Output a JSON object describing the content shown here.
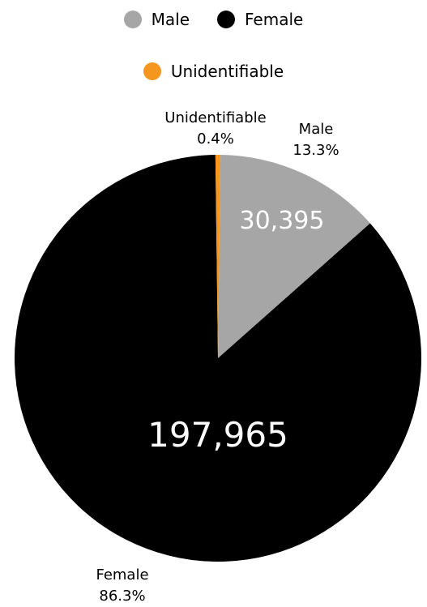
{
  "chart_data": {
    "type": "pie",
    "series": [
      {
        "name": "Male",
        "value": 30395,
        "value_label": "30,395",
        "percent_label": "13.3%",
        "color": "#a6a6a6"
      },
      {
        "name": "Female",
        "value": 197965,
        "value_label": "197,965",
        "percent_label": "86.3%",
        "color": "#000000"
      },
      {
        "name": "Unidentifiable",
        "value": 912,
        "percent_label": "0.4%",
        "color": "#f5961e"
      }
    ],
    "legend": {
      "placement": "top",
      "entries": [
        {
          "label": "Male",
          "color": "#a6a6a6"
        },
        {
          "label": "Female",
          "color": "#000000"
        },
        {
          "label": "Unidentifiable",
          "color": "#f5961e"
        }
      ]
    }
  }
}
